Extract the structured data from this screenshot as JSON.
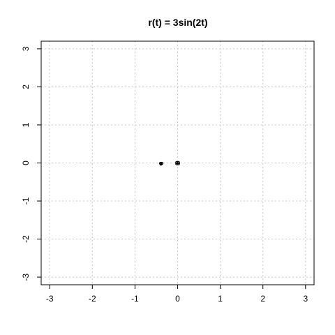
{
  "chart_data": {
    "type": "scatter",
    "title": "r(t) = 3sin(2t)",
    "xlabel": "",
    "ylabel": "",
    "xlim": [
      -3.2,
      3.2
    ],
    "ylim": [
      -3.2,
      3.2
    ],
    "x_ticks": [
      -3,
      -2,
      -1,
      0,
      1,
      2,
      3
    ],
    "y_ticks": [
      -3,
      -2,
      -1,
      0,
      1,
      2,
      3
    ],
    "x_tick_labels": [
      "-3",
      "-2",
      "-1",
      "0",
      "1",
      "2",
      "3"
    ],
    "y_tick_labels": [
      "-3",
      "-2",
      "-1",
      "0",
      "1",
      "2",
      "3"
    ],
    "grid": true,
    "grid_color": "#c8c8c8",
    "point_color": "#000000",
    "points": [
      {
        "x": -0.39,
        "y": -0.03
      },
      {
        "x": -0.37,
        "y": -0.01
      },
      {
        "x": -0.4,
        "y": -0.01
      },
      {
        "x": -0.02,
        "y": 0.01
      },
      {
        "x": 0.02,
        "y": 0.01
      },
      {
        "x": -0.02,
        "y": -0.02
      },
      {
        "x": 0.02,
        "y": -0.02
      }
    ]
  }
}
